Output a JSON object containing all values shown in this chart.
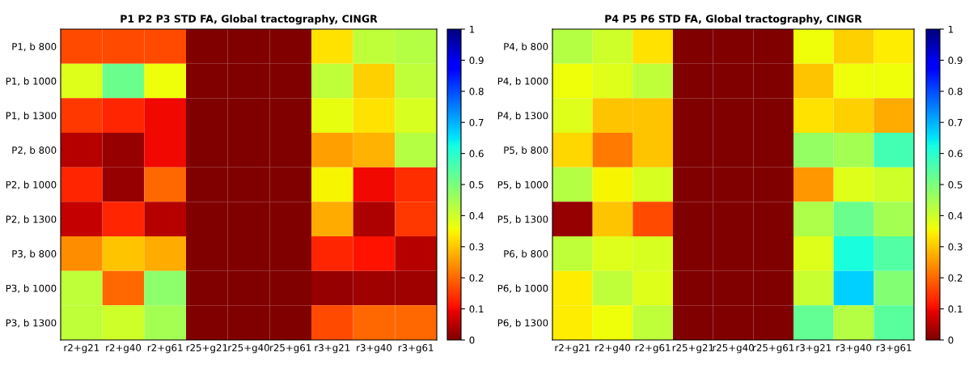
{
  "chart_data": [
    {
      "type": "heatmap",
      "title": "P1 P2 P3 STD FA, Global tractography, CINGR",
      "categories": [
        "r2+g21",
        "r2+g40",
        "r2+g61",
        "r25+g21",
        "r25+g40",
        "r25+g61",
        "r3+g21",
        "r3+g40",
        "r3+g61"
      ],
      "y_categories": [
        "P1, b 800",
        "P1, b 1000",
        "P1, b 1300",
        "P2, b 800",
        "P2, b 1000",
        "P2, b 1300",
        "P3, b 800",
        "P3, b 1000",
        "P3, b 1300"
      ],
      "cells": [
        [
          0.17,
          0.17,
          0.17,
          0,
          0,
          0,
          0.33,
          0.42,
          0.43
        ],
        [
          0.38,
          0.52,
          0.36,
          0,
          0,
          0,
          0.42,
          0.31,
          0.42
        ],
        [
          0.15,
          0.13,
          0.1,
          0,
          0,
          0,
          0.37,
          0.33,
          0.39
        ],
        [
          0.05,
          0.02,
          0.1,
          0,
          0,
          0,
          0.26,
          0.28,
          0.43
        ],
        [
          0.13,
          0.02,
          0.2,
          0,
          0,
          0,
          0.35,
          0.1,
          0.14
        ],
        [
          0.06,
          0.13,
          0.05,
          0,
          0,
          0,
          0.27,
          0.04,
          0.15
        ],
        [
          0.24,
          0.3,
          0.27,
          0,
          0,
          0,
          0.13,
          0.11,
          0.05
        ],
        [
          0.42,
          0.2,
          0.48,
          0,
          0,
          0,
          0.02,
          0.03,
          0.03
        ],
        [
          0.42,
          0.4,
          0.45,
          0,
          0,
          0,
          0.17,
          0.2,
          0.2
        ]
      ],
      "clim": [
        0,
        1
      ],
      "cticks": [
        0,
        0.1,
        0.2,
        0.3,
        0.4,
        0.5,
        0.6,
        0.7,
        0.8,
        0.9,
        1
      ]
    },
    {
      "type": "heatmap",
      "title": "P4 P5 P6 STD FA, Global tractography, CINGR",
      "categories": [
        "r2+g21",
        "r2+g40",
        "r2+g61",
        "r25+g21",
        "r25+g40",
        "r25+g61",
        "r3+g21",
        "r3+g40",
        "r3+g61"
      ],
      "y_categories": [
        "P4, b 800",
        "P4, b 1000",
        "P4, b 1300",
        "P5, b 800",
        "P5, b 1000",
        "P5, b 1300",
        "P6, b 800",
        "P6, b 1000",
        "P6, b 1300"
      ],
      "cells": [
        [
          0.43,
          0.4,
          0.33,
          0,
          0,
          0,
          0.36,
          0.31,
          0.34
        ],
        [
          0.36,
          0.38,
          0.42,
          0,
          0,
          0,
          0.3,
          0.36,
          0.36
        ],
        [
          0.38,
          0.3,
          0.3,
          0,
          0,
          0,
          0.33,
          0.31,
          0.27
        ],
        [
          0.32,
          0.22,
          0.3,
          0,
          0,
          0,
          0.47,
          0.45,
          0.57
        ],
        [
          0.43,
          0.35,
          0.39,
          0,
          0,
          0,
          0.25,
          0.38,
          0.4
        ],
        [
          0.02,
          0.3,
          0.17,
          0,
          0,
          0,
          0.44,
          0.52,
          0.45
        ],
        [
          0.42,
          0.38,
          0.39,
          0,
          0,
          0,
          0.38,
          0.62,
          0.55
        ],
        [
          0.34,
          0.42,
          0.38,
          0,
          0,
          0,
          0.41,
          0.67,
          0.49
        ],
        [
          0.34,
          0.36,
          0.42,
          0,
          0,
          0,
          0.53,
          0.43,
          0.54
        ]
      ],
      "clim": [
        0,
        1
      ],
      "cticks": [
        0,
        0.1,
        0.2,
        0.3,
        0.4,
        0.5,
        0.6,
        0.7,
        0.8,
        0.9,
        1
      ]
    }
  ]
}
